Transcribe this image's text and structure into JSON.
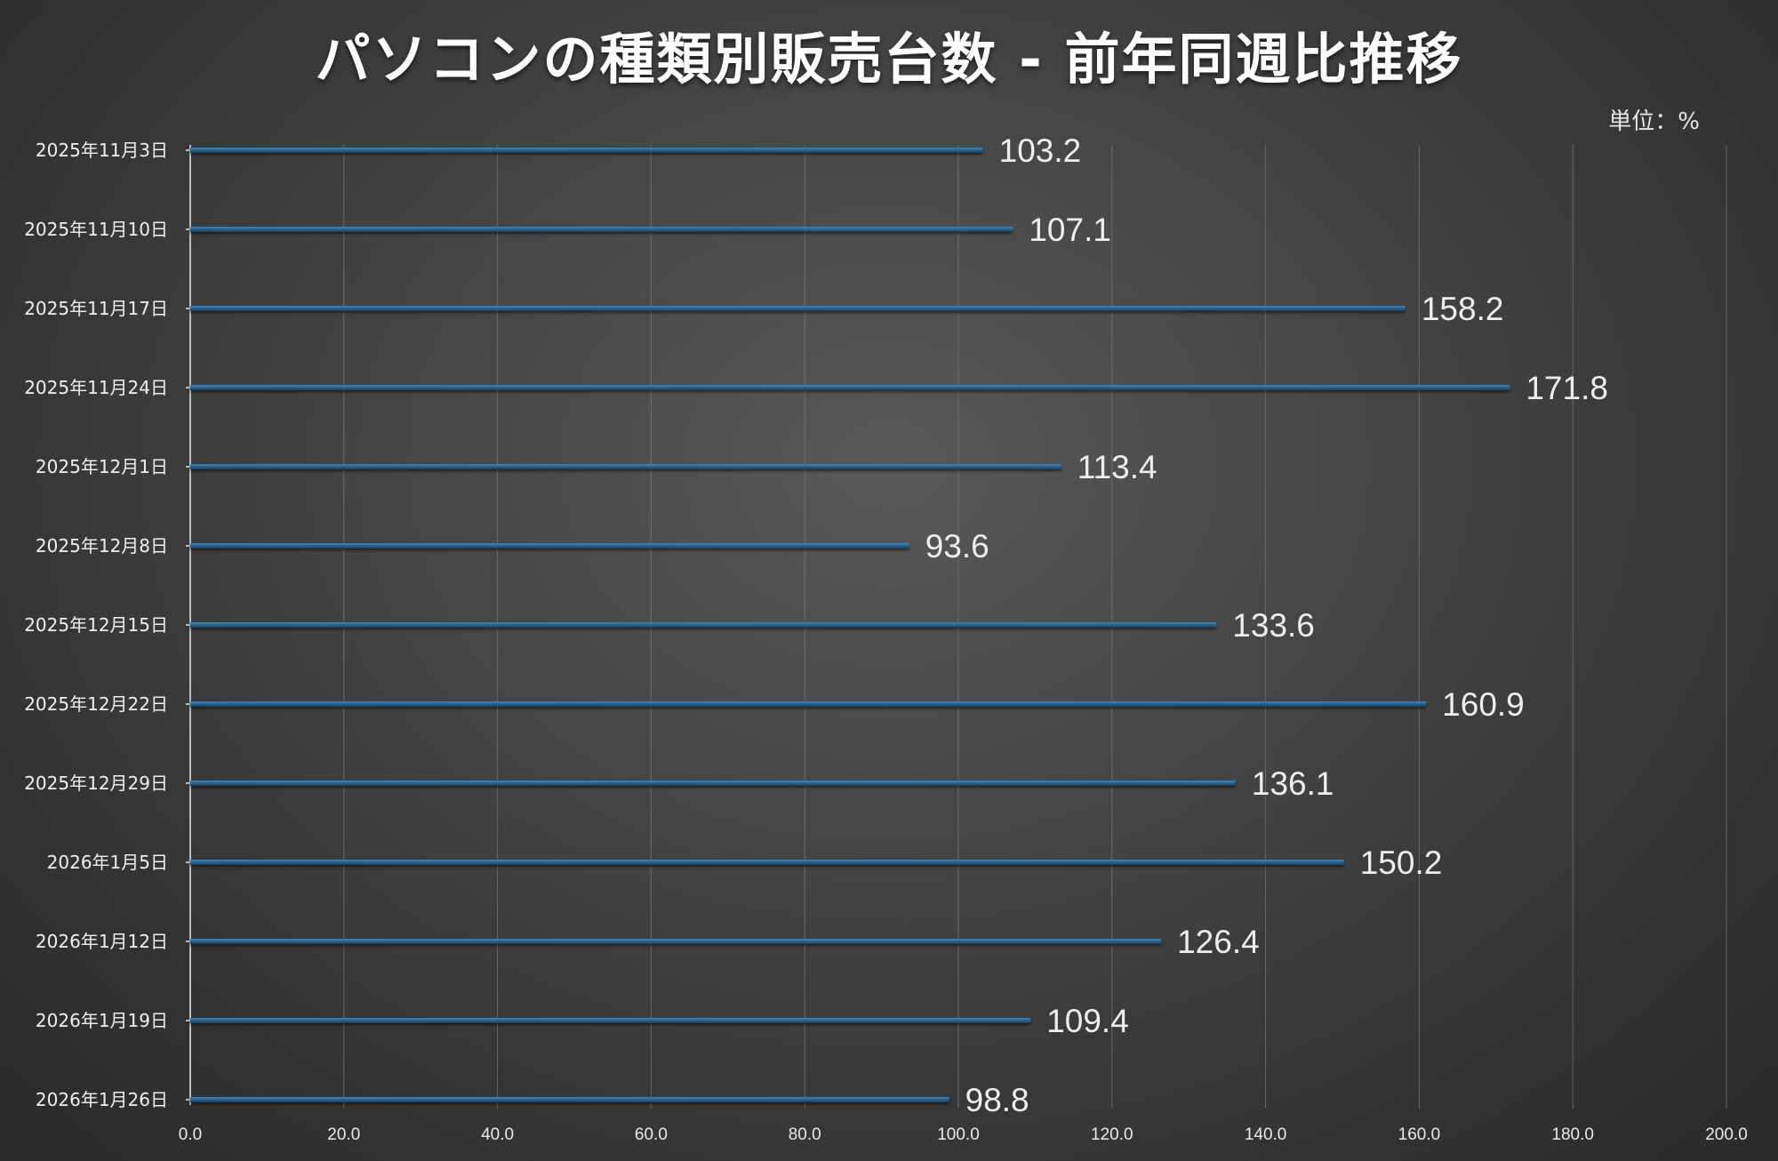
{
  "title": "パソコンの種類別販売台数 - 前年同週比推移",
  "unit_label": "単位：%",
  "colors": {
    "bar": "#1f5a85",
    "bar_highlight": "#3f86b8",
    "grid": "#7a7a7a",
    "axis": "#bdbdbd"
  },
  "chart_data": {
    "type": "bar",
    "orientation": "horizontal",
    "title": "パソコンの種類別販売台数 - 前年同週比推移",
    "xlabel": "",
    "ylabel": "",
    "unit": "単位：%",
    "xlim": [
      0,
      200
    ],
    "x_ticks": [
      "0.0",
      "20.0",
      "40.0",
      "60.0",
      "80.0",
      "100.0",
      "120.0",
      "140.0",
      "160.0",
      "180.0",
      "200.0"
    ],
    "grid": true,
    "categories": [
      "2025年11月3日",
      "2025年11月10日",
      "2025年11月17日",
      "2025年11月24日",
      "2025年12月1日",
      "2025年12月8日",
      "2025年12月15日",
      "2025年12月22日",
      "2025年12月29日",
      "2026年1月5日",
      "2026年1月12日",
      "2026年1月19日",
      "2026年1月26日"
    ],
    "values": [
      103.2,
      107.1,
      158.2,
      171.8,
      113.4,
      93.6,
      133.6,
      160.9,
      136.1,
      150.2,
      126.4,
      109.4,
      98.8
    ],
    "data_labels": [
      "103.2",
      "107.1",
      "158.2",
      "171.8",
      "113.4",
      "93.6",
      "133.6",
      "160.9",
      "136.1",
      "150.2",
      "126.4",
      "109.4",
      "98.8"
    ]
  }
}
